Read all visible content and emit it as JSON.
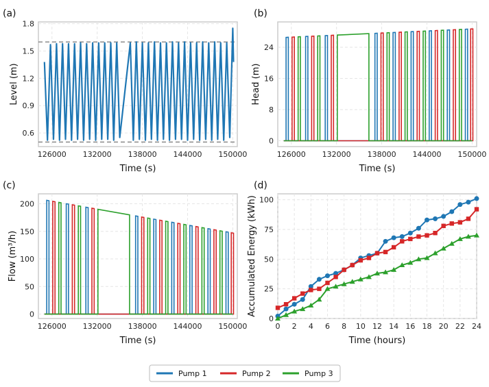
{
  "colors": {
    "pump1": "#1f77b4",
    "pump2": "#d62728",
    "pump3": "#2ca02c",
    "frame": "#cccccc",
    "grid": "#e6e6e6",
    "ref": "#777777"
  },
  "legend": {
    "location": "bottom-center",
    "items": [
      {
        "name": "Pump 1",
        "color": "#1f77b4"
      },
      {
        "name": "Pump 2",
        "color": "#d62728"
      },
      {
        "name": "Pump 3",
        "color": "#2ca02c"
      }
    ]
  },
  "chart_data": [
    {
      "panel": "(a)",
      "type": "line",
      "xlabel": "Time (s)",
      "ylabel": "Level (m)",
      "xlim": [
        124200,
        150600
      ],
      "ylim": [
        0.45,
        1.82
      ],
      "xticks": [
        "126000",
        "132000",
        "138000",
        "144000",
        "150000"
      ],
      "yticks": [
        "0.6",
        "0.9",
        "1.2",
        "1.5",
        "1.8"
      ],
      "ref_lines": [
        0.5,
        1.6
      ],
      "series": [
        {
          "name": "Level",
          "color": "#1f77b4",
          "x": [
            125000,
            125400,
            125800,
            126200,
            126600,
            127000,
            127400,
            127800,
            128200,
            128600,
            129000,
            129400,
            129800,
            130200,
            130600,
            131000,
            131400,
            131800,
            132200,
            132600,
            133000,
            133400,
            133800,
            134200,
            134600,
            135000,
            136400,
            136800,
            137200,
            137600,
            138000,
            138400,
            138800,
            139200,
            139600,
            140000,
            140400,
            140800,
            141200,
            141600,
            142000,
            142400,
            142800,
            143200,
            143600,
            144000,
            144400,
            144800,
            145200,
            145600,
            146000,
            146400,
            146800,
            147200,
            147600,
            148000,
            148400,
            148800,
            149200,
            149600,
            150000,
            150100
          ],
          "y": [
            1.38,
            0.52,
            1.57,
            0.53,
            1.58,
            0.52,
            1.58,
            0.53,
            1.58,
            0.52,
            1.58,
            0.53,
            1.59,
            0.52,
            1.58,
            0.53,
            1.59,
            0.52,
            1.59,
            0.53,
            1.59,
            0.53,
            1.59,
            0.52,
            1.59,
            0.55,
            1.59,
            0.52,
            1.6,
            0.53,
            1.59,
            0.52,
            1.59,
            0.53,
            1.6,
            0.52,
            1.59,
            0.53,
            1.59,
            0.52,
            1.6,
            0.53,
            1.59,
            0.53,
            1.6,
            0.52,
            1.59,
            0.53,
            1.59,
            0.52,
            1.6,
            0.53,
            1.59,
            0.52,
            1.6,
            0.53,
            1.59,
            0.52,
            1.59,
            0.55,
            1.75,
            1.38
          ]
        }
      ]
    },
    {
      "panel": "(b)",
      "type": "line",
      "xlabel": "Time (s)",
      "ylabel": "Head (m)",
      "xlim": [
        124200,
        150600
      ],
      "ylim": [
        -1.5,
        30.5
      ],
      "xticks": [
        "126000",
        "132000",
        "138000",
        "144000",
        "150000"
      ],
      "yticks": [
        "0",
        "8",
        "16",
        "24"
      ],
      "head_range": {
        "start": 26.5,
        "end": 28.7
      },
      "series": [
        {
          "name": "Pump 1",
          "color": "#1f77b4",
          "pulses": [
            [
              125300,
              125600
            ],
            [
              127900,
              128200
            ],
            [
              130500,
              130800
            ],
            [
              137100,
              137400
            ],
            [
              139500,
              139800
            ],
            [
              141900,
              142200
            ],
            [
              144300,
              144600
            ],
            [
              146700,
              147000
            ],
            [
              149100,
              149400
            ]
          ]
        },
        {
          "name": "Pump 2",
          "color": "#d62728",
          "pulses": [
            [
              126100,
              126400
            ],
            [
              128700,
              129000
            ],
            [
              131300,
              131600
            ],
            [
              137900,
              138200
            ],
            [
              140300,
              140600
            ],
            [
              142700,
              143000
            ],
            [
              145100,
              145400
            ],
            [
              147500,
              147800
            ],
            [
              149800,
              150100
            ]
          ]
        },
        {
          "name": "Pump 3",
          "color": "#2ca02c",
          "pulses": [
            [
              126900,
              127200
            ],
            [
              129500,
              129800
            ],
            [
              132100,
              136300
            ],
            [
              138700,
              139000
            ],
            [
              141100,
              141400
            ],
            [
              143500,
              143800
            ],
            [
              145900,
              146200
            ],
            [
              148300,
              148600
            ]
          ]
        }
      ]
    },
    {
      "panel": "(c)",
      "type": "line",
      "xlabel": "Time (s)",
      "ylabel": "Flow (m³/h)",
      "xlim": [
        124200,
        150600
      ],
      "ylim": [
        -8,
        218
      ],
      "xticks": [
        "126000",
        "132000",
        "138000",
        "144000",
        "150000"
      ],
      "yticks": [
        "0",
        "50",
        "100",
        "150",
        "200"
      ],
      "flow_range": {
        "start": 207,
        "end": 147
      }
    },
    {
      "panel": "(d)",
      "type": "line",
      "xlabel": "Time (hours)",
      "ylabel": "Accumulated Energy (kWh)",
      "xlim": [
        0,
        24
      ],
      "ylim": [
        0,
        105
      ],
      "xticks": [
        "0",
        "2",
        "4",
        "6",
        "8",
        "10",
        "12",
        "14",
        "16",
        "18",
        "20",
        "22",
        "24"
      ],
      "yticks": [
        "0",
        "25",
        "50",
        "75",
        "100"
      ],
      "series": [
        {
          "name": "Pump 1",
          "color": "#1f77b4",
          "marker": "circle",
          "x": [
            0,
            1,
            2,
            3,
            4,
            5,
            6,
            7,
            8,
            9,
            10,
            11,
            12,
            13,
            14,
            15,
            16,
            17,
            18,
            19,
            20,
            21,
            22,
            23,
            24
          ],
          "y": [
            2,
            8,
            12,
            16,
            27,
            33,
            36,
            38,
            41,
            45,
            51,
            53,
            55,
            65,
            68,
            69,
            72,
            76,
            83,
            84,
            86,
            90,
            96,
            98,
            101
          ]
        },
        {
          "name": "Pump 2",
          "color": "#d62728",
          "marker": "square",
          "x": [
            0,
            1,
            2,
            3,
            4,
            5,
            6,
            7,
            8,
            9,
            10,
            11,
            12,
            13,
            14,
            15,
            16,
            17,
            18,
            19,
            20,
            21,
            22,
            23,
            24
          ],
          "y": [
            9,
            12,
            17,
            21,
            24,
            25,
            30,
            35,
            41,
            45,
            49,
            51,
            55,
            56,
            60,
            65,
            67,
            69,
            70,
            72,
            78,
            80,
            81,
            84,
            92
          ]
        },
        {
          "name": "Pump 3",
          "color": "#2ca02c",
          "marker": "triangle",
          "x": [
            0,
            1,
            2,
            3,
            4,
            5,
            6,
            7,
            8,
            9,
            10,
            11,
            12,
            13,
            14,
            15,
            16,
            17,
            18,
            19,
            20,
            21,
            22,
            23,
            24
          ],
          "y": [
            0,
            3,
            6,
            8,
            11,
            16,
            25,
            27,
            29,
            31,
            33,
            35,
            38,
            39,
            41,
            45,
            47,
            50,
            51,
            55,
            59,
            63,
            67,
            69,
            70
          ]
        }
      ]
    }
  ]
}
